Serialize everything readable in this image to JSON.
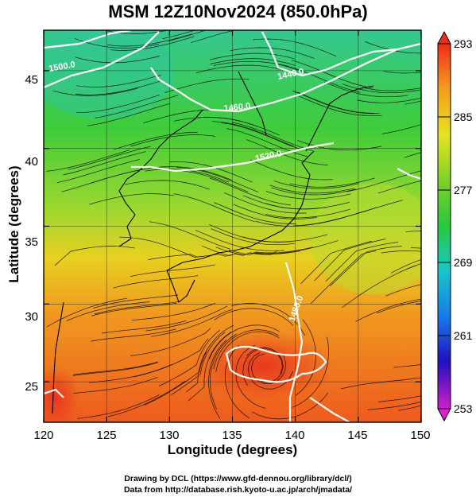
{
  "title": "MSM 12Z10Nov2024 (850.0hPa)",
  "axes": {
    "xlabel": "Longitude (degrees)",
    "ylabel": "Latitude  (degrees)",
    "xticks": [
      "120",
      "125",
      "130",
      "135",
      "140",
      "145",
      "150"
    ],
    "yticks": [
      "25",
      "30",
      "35",
      "40",
      "45"
    ],
    "xlim": [
      120,
      150
    ],
    "ylim": [
      22.4,
      47.6
    ]
  },
  "colorbar": {
    "labels": [
      "293",
      "285",
      "277",
      "269",
      "261",
      "253"
    ],
    "range": [
      253,
      293
    ]
  },
  "contours": {
    "labels": [
      "1500.0",
      "1460.0",
      "1480.0",
      "1520.0",
      "1440.0"
    ]
  },
  "credits": {
    "line1": "Drawing by DCL (https://www.gfd-dennou.org/library/dcl/)",
    "line2": "Data from http://database.rish.kyoto-u.ac.jp/arch/jmadata/"
  }
}
